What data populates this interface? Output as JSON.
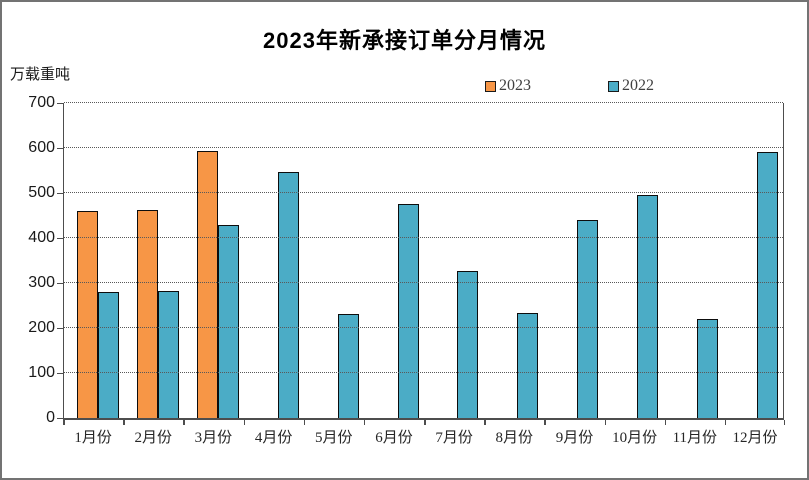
{
  "chart_data": {
    "type": "bar",
    "title": "2023年新承接订单分月情况",
    "ylabel": "万载重吨",
    "xlabel": "",
    "categories": [
      "1月份",
      "2月份",
      "3月份",
      "4月份",
      "5月份",
      "6月份",
      "7月份",
      "8月份",
      "9月份",
      "10月份",
      "11月份",
      "12月份"
    ],
    "series": [
      {
        "name": "2023",
        "color": "#F79646",
        "values": [
          461,
          463,
          594,
          null,
          null,
          null,
          null,
          null,
          null,
          null,
          null,
          null
        ]
      },
      {
        "name": "2022",
        "color": "#4BACC6",
        "values": [
          281,
          283,
          429,
          546,
          231,
          476,
          326,
          233,
          440,
          495,
          221,
          591
        ]
      }
    ],
    "ylim": [
      0,
      700
    ],
    "y_ticks": [
      700,
      600,
      500,
      400,
      300,
      200,
      100,
      0
    ],
    "grid": true,
    "gridline_style": "dotted",
    "legend_position": "top"
  }
}
